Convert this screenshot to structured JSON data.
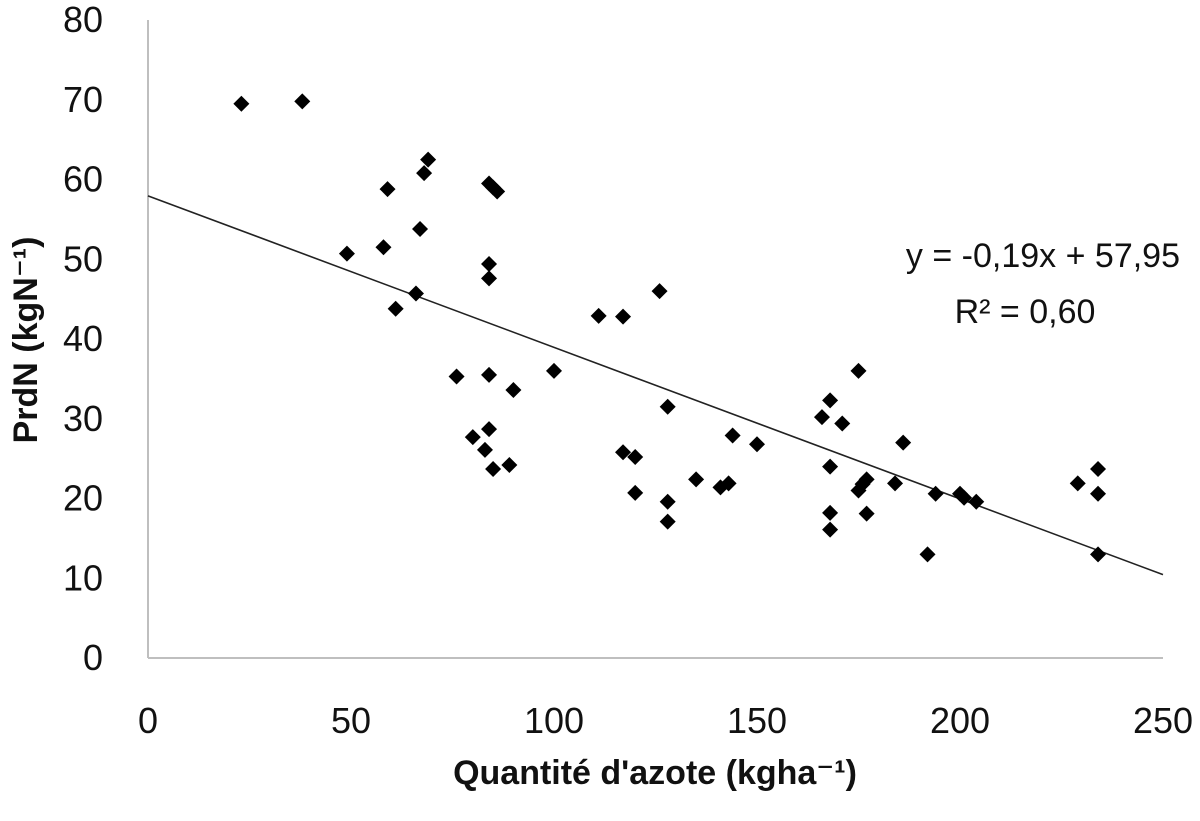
{
  "chart_data": {
    "type": "scatter",
    "xlabel": "Quantité d'azote (kgha⁻¹)",
    "ylabel": "PrdN (kgN⁻¹)",
    "xlim": [
      0,
      250
    ],
    "ylim": [
      0,
      80
    ],
    "x_ticks": [
      "0",
      "50",
      "100",
      "150",
      "200",
      "250"
    ],
    "y_ticks": [
      "0",
      "10",
      "20",
      "30",
      "40",
      "50",
      "60",
      "70",
      "80"
    ],
    "grid": false,
    "legend": "none",
    "marker": "diamond",
    "marker_color": "#000000",
    "points": [
      {
        "x": 23,
        "y": 69.5
      },
      {
        "x": 38,
        "y": 69.8
      },
      {
        "x": 49,
        "y": 50.7
      },
      {
        "x": 58,
        "y": 51.5
      },
      {
        "x": 59,
        "y": 58.8
      },
      {
        "x": 61,
        "y": 43.8
      },
      {
        "x": 66,
        "y": 45.7
      },
      {
        "x": 67,
        "y": 53.8
      },
      {
        "x": 68,
        "y": 60.8
      },
      {
        "x": 69,
        "y": 62.5
      },
      {
        "x": 76,
        "y": 35.3
      },
      {
        "x": 80,
        "y": 27.7
      },
      {
        "x": 83,
        "y": 26.1
      },
      {
        "x": 84,
        "y": 28.7
      },
      {
        "x": 84,
        "y": 35.5
      },
      {
        "x": 84,
        "y": 47.6
      },
      {
        "x": 84,
        "y": 49.4
      },
      {
        "x": 84,
        "y": 59.5
      },
      {
        "x": 85,
        "y": 23.7
      },
      {
        "x": 85,
        "y": 59.0
      },
      {
        "x": 86,
        "y": 58.5
      },
      {
        "x": 89,
        "y": 24.2
      },
      {
        "x": 90,
        "y": 33.6
      },
      {
        "x": 100,
        "y": 36.0
      },
      {
        "x": 111,
        "y": 42.9
      },
      {
        "x": 117,
        "y": 42.8
      },
      {
        "x": 117,
        "y": 25.8
      },
      {
        "x": 120,
        "y": 25.2
      },
      {
        "x": 120,
        "y": 20.7
      },
      {
        "x": 126,
        "y": 46.0
      },
      {
        "x": 128,
        "y": 31.5
      },
      {
        "x": 128,
        "y": 19.6
      },
      {
        "x": 128,
        "y": 17.1
      },
      {
        "x": 135,
        "y": 22.4
      },
      {
        "x": 141,
        "y": 21.4
      },
      {
        "x": 143,
        "y": 21.9
      },
      {
        "x": 144,
        "y": 27.9
      },
      {
        "x": 150,
        "y": 26.8
      },
      {
        "x": 166,
        "y": 30.2
      },
      {
        "x": 168,
        "y": 32.3
      },
      {
        "x": 168,
        "y": 24.0
      },
      {
        "x": 168,
        "y": 18.2
      },
      {
        "x": 168,
        "y": 16.1
      },
      {
        "x": 171,
        "y": 29.4
      },
      {
        "x": 175,
        "y": 36.0
      },
      {
        "x": 175,
        "y": 21.0
      },
      {
        "x": 176,
        "y": 21.8
      },
      {
        "x": 177,
        "y": 22.4
      },
      {
        "x": 177,
        "y": 18.1
      },
      {
        "x": 184,
        "y": 21.9
      },
      {
        "x": 186,
        "y": 27.0
      },
      {
        "x": 192,
        "y": 13.0
      },
      {
        "x": 194,
        "y": 20.6
      },
      {
        "x": 200,
        "y": 20.6
      },
      {
        "x": 201,
        "y": 20.1
      },
      {
        "x": 204,
        "y": 19.6
      },
      {
        "x": 229,
        "y": 21.9
      },
      {
        "x": 234,
        "y": 23.7
      },
      {
        "x": 234,
        "y": 20.6
      },
      {
        "x": 234,
        "y": 13.0
      }
    ],
    "trendline": {
      "type": "linear",
      "slope": -0.19,
      "intercept": 57.95,
      "x_range": [
        0,
        250
      ],
      "equation": "y = -0,19x + 57,95",
      "r_squared": "R² = 0,60"
    }
  }
}
